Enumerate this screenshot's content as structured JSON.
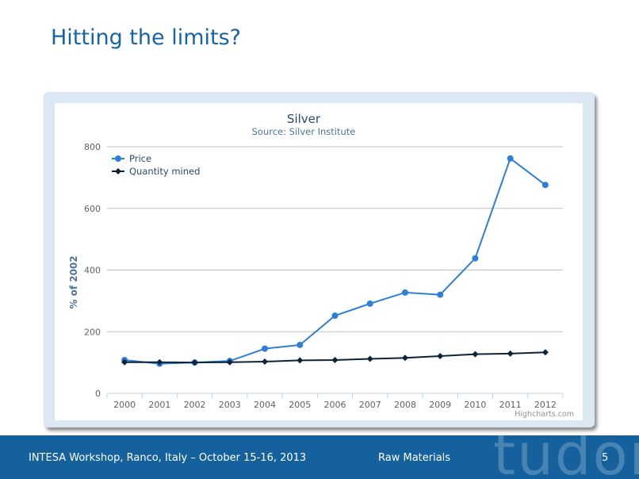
{
  "slide": {
    "title": "Hitting the limits?"
  },
  "footer": {
    "event": "INTESA Workshop, Ranco, Italy – October 15-16, 2013",
    "topic": "Raw Materials",
    "page_number": "5",
    "logo_text": "tudor"
  },
  "chart_data": {
    "type": "line",
    "title": "Silver",
    "subtitle": "Source: Silver Institute",
    "xlabel": "",
    "ylabel": "% of 2002",
    "categories": [
      "2000",
      "2001",
      "2002",
      "2003",
      "2004",
      "2005",
      "2006",
      "2007",
      "2008",
      "2009",
      "2010",
      "2011",
      "2012"
    ],
    "ylim": [
      0,
      800
    ],
    "yticks": [
      0,
      200,
      400,
      600,
      800
    ],
    "series": [
      {
        "name": "Price",
        "color": "#2f7ed8",
        "marker": "circle",
        "values": [
          108,
          96,
          100,
          105,
          145,
          157,
          252,
          291,
          327,
          320,
          438,
          762,
          676
        ]
      },
      {
        "name": "Quantity mined",
        "color": "#0d233a",
        "marker": "diamond",
        "values": [
          101,
          101,
          100,
          101,
          103,
          107,
          108,
          112,
          115,
          121,
          127,
          129,
          133
        ]
      }
    ],
    "legend_position": "top-left",
    "credits": "Highcharts.com"
  }
}
